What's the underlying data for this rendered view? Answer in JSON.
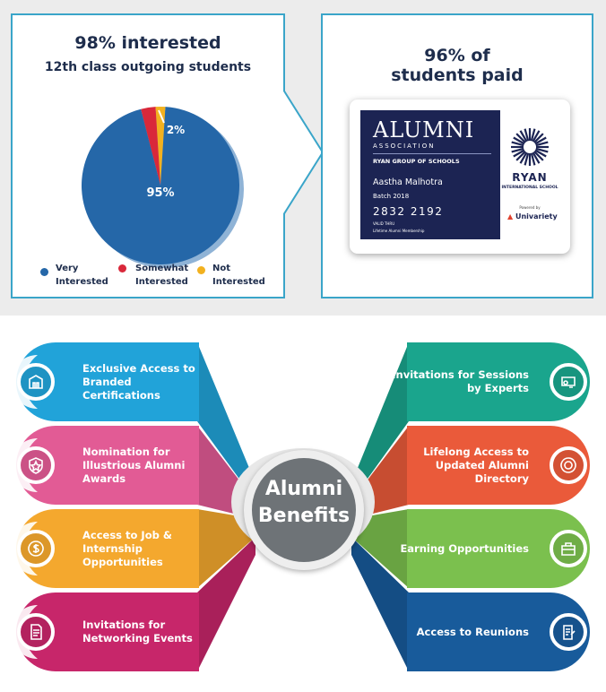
{
  "pie": {
    "title": "98% interested",
    "subtitle": "12th class outgoing students",
    "label_main": "95%",
    "label_small": "2%"
  },
  "chart_data": {
    "type": "pie",
    "title": "98% interested",
    "subtitle": "12th class outgoing students",
    "slices": [
      {
        "label": "Very Interested",
        "value": 95,
        "color": "#2567a8"
      },
      {
        "label": "Somewhat Interested",
        "value": 3,
        "color": "#d9283a"
      },
      {
        "label": "Not Interested",
        "value": 2,
        "color": "#f2b11f"
      }
    ],
    "legend": "bottom"
  },
  "legend": [
    {
      "line1": "Very",
      "line2": "Interested",
      "color": "#2567a8"
    },
    {
      "line1": "Somewhat",
      "line2": "Interested",
      "color": "#d9283a"
    },
    {
      "line1": "Not",
      "line2": "Interested",
      "color": "#f2b11f"
    }
  ],
  "card_panel": {
    "title_line1": "96% of",
    "title_line2": "students paid"
  },
  "card": {
    "brand": "ALUMNI",
    "brand_sub": "ASSOCIATION",
    "group": "RYAN GROUP OF SCHOOLS",
    "name": "Aastha Malhotra",
    "batch": "Batch 2018",
    "number": "2832 2192",
    "valid": "VALID THRU",
    "membership": "Lifetime Alumni Membership",
    "school": "RYAN",
    "school_sub": "INTERNATIONAL SCHOOL",
    "powered": "Powered by",
    "univariety": "Univariety"
  },
  "center": {
    "line1": "Alumni",
    "line2": "Benefits"
  },
  "left_items": [
    {
      "text1": "Exclusive Access to",
      "text2": "Branded",
      "text3": "Certifications",
      "color": "#21a3d9",
      "icon": "school-icon"
    },
    {
      "text1": "Nomination for",
      "text2": "Illustrious Alumni",
      "text3": "Awards",
      "color": "#e25b95",
      "icon": "award-icon"
    },
    {
      "text1": "Access to Job &",
      "text2": "Internship",
      "text3": "Opportunities",
      "color": "#f4a82e",
      "icon": "money-icon"
    },
    {
      "text1": "Invitations for",
      "text2": "Networking Events",
      "text3": "",
      "color": "#c7266a",
      "icon": "document-icon"
    }
  ],
  "right_items": [
    {
      "text1": "Invitations for Sessions",
      "text2": "by Experts",
      "text3": "",
      "color": "#1aa58d",
      "icon": "expert-icon"
    },
    {
      "text1": "Lifelong Access to",
      "text2": "Updated Alumni",
      "text3": "Directory",
      "color": "#ea5a3a",
      "icon": "directory-icon"
    },
    {
      "text1": "Earning Opportunities",
      "text2": "",
      "text3": "",
      "color": "#7bc04e",
      "icon": "briefcase-icon"
    },
    {
      "text1": "Access to Reunions",
      "text2": "",
      "text3": "",
      "color": "#185b9b",
      "icon": "reunion-icon"
    }
  ]
}
